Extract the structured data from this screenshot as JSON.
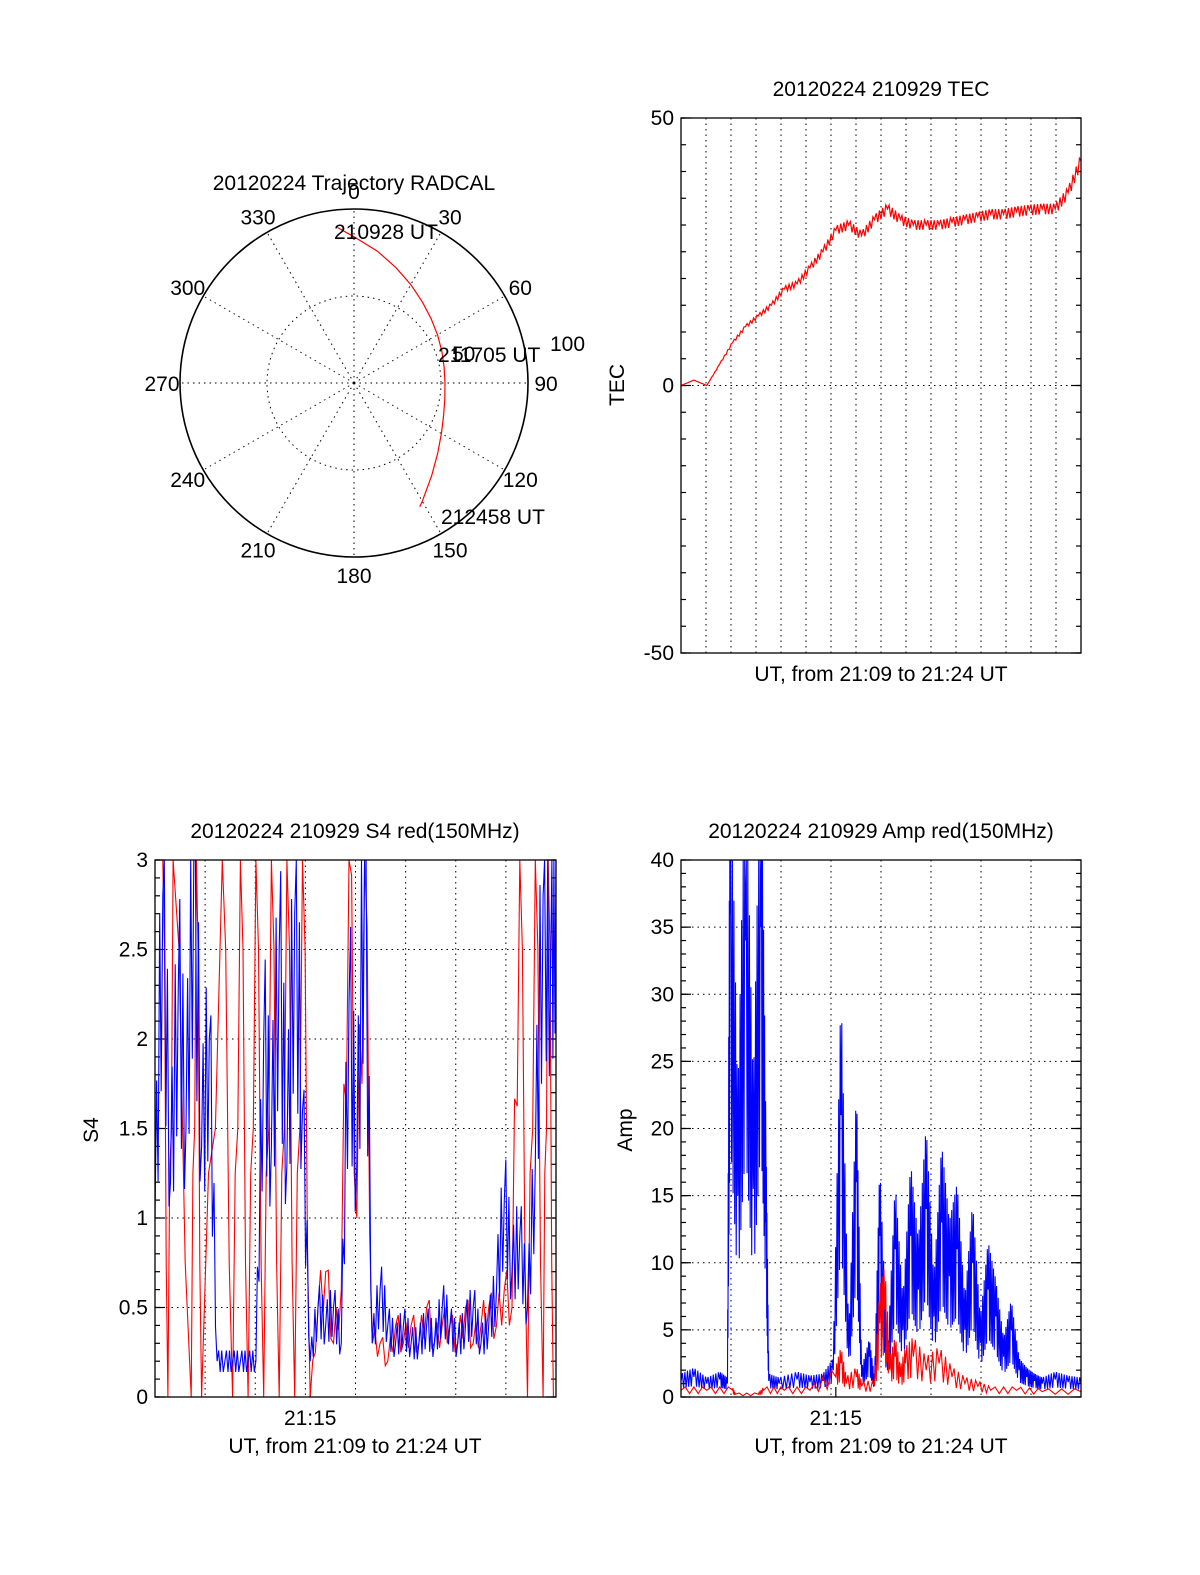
{
  "chart_data": [
    {
      "type": "polar",
      "title": "20120224 Trajectory RADCAL",
      "angle_ticks": [
        "0",
        "30",
        "60",
        "90",
        "120",
        "150",
        "180",
        "210",
        "240",
        "270",
        "300",
        "330"
      ],
      "radial_ticks": [
        "50",
        "100"
      ],
      "radial_max": 100,
      "labels": {
        "start": "210928 UT",
        "mid": "211705 UT",
        "end": "212458 UT"
      },
      "trajectory": {
        "azimuth_deg": [
          -6.0,
          0,
          10,
          20,
          30,
          40,
          50,
          60,
          70,
          80,
          90,
          100,
          110,
          120,
          130,
          140,
          150,
          152.0
        ],
        "zenith": [
          89.8,
          84.0,
          77.0,
          70.5,
          65.3,
          61.0,
          57.8,
          55.4,
          53.7,
          52.6,
          52.3,
          53.0,
          54.8,
          58.0,
          62.8,
          69.5,
          78.5,
          80.5
        ]
      },
      "trajectory_color": "#ff0000"
    },
    {
      "type": "line",
      "title": "20120224 210929 TEC",
      "ylabel": "TEC",
      "xlabel": "UT, from 21:09 to 21:24 UT",
      "ylim": [
        -50,
        50
      ],
      "yticks": [
        "-50",
        "0",
        "50"
      ],
      "x_range_min": [
        0,
        15.5
      ],
      "series": [
        {
          "color": "#ff0000",
          "x_min": [
            0,
            0.5,
            1.0,
            1.5,
            2.0,
            2.5,
            3.0,
            3.5,
            4.0,
            4.5,
            5.0,
            5.5,
            6.0,
            6.5,
            7.0,
            7.5,
            8.0,
            8.5,
            9.0,
            9.5,
            10.0,
            10.5,
            11.0,
            11.5,
            12.0,
            12.5,
            13.0,
            13.5,
            14.0,
            14.5,
            15.0,
            15.5
          ],
          "values": [
            0,
            1,
            0,
            4,
            8,
            11,
            13,
            15,
            18,
            19,
            22,
            25,
            29,
            30,
            28,
            31,
            33,
            31,
            30,
            30,
            30,
            30.5,
            31,
            31.5,
            32,
            32,
            32.5,
            32.8,
            33,
            33,
            36,
            42
          ]
        }
      ]
    },
    {
      "type": "line",
      "title": "20120224 210929 S4 red(150MHz)",
      "ylabel": "S4",
      "xlabel": "UT, from 21:09 to 21:24 UT",
      "ylim": [
        0,
        3
      ],
      "yticks": [
        "0",
        "0.5",
        "1",
        "1.5",
        "2",
        "2.5",
        "3"
      ],
      "xticks": [
        {
          "min": 6,
          "label": "21:15"
        }
      ],
      "x_range_min": [
        0,
        15.5
      ],
      "series": [
        {
          "name": "red",
          "color": "#ff0000",
          "x_min": [
            0.3,
            0.5,
            0.7,
            1.4,
            1.6,
            1.8,
            2.6,
            3.0,
            3.3,
            3.6,
            3.9,
            4.2,
            4.5,
            4.8,
            5.1,
            5.4,
            5.7,
            6.0,
            6.3,
            6.6,
            6.9,
            7.2,
            7.5,
            7.8,
            8.1,
            8.4,
            8.7,
            9.0,
            9.3,
            9.6,
            9.9,
            10.2,
            10.5,
            10.8,
            11.1,
            11.4,
            11.7,
            12.0,
            12.3,
            12.6,
            12.9,
            13.2,
            13.5,
            13.8,
            14.1,
            14.4,
            14.7,
            15.0,
            15.2,
            15.4
          ],
          "values": [
            3.0,
            0.0,
            3.0,
            0.0,
            3.0,
            0.0,
            3.0,
            0.0,
            3.0,
            0.0,
            3.0,
            0.0,
            3.0,
            0.0,
            3.0,
            0.0,
            3.0,
            0.0,
            0.5,
            0.7,
            0.3,
            0.6,
            3.0,
            1.0,
            3.0,
            0.3,
            0.3,
            0.2,
            0.4,
            0.3,
            0.4,
            0.3,
            0.5,
            0.3,
            0.4,
            0.4,
            0.3,
            0.5,
            0.3,
            0.4,
            0.5,
            0.4,
            0.6,
            0.5,
            3.0,
            0.0,
            3.0,
            0.0,
            3.0,
            0.0
          ]
        },
        {
          "name": "blue",
          "color": "#0000ff",
          "x_min": [
            0.0,
            0.3,
            0.6,
            0.9,
            1.2,
            1.5,
            1.8,
            2.1,
            2.4,
            2.7,
            3.0,
            3.3,
            3.6,
            3.9,
            4.2,
            4.5,
            4.8,
            5.1,
            5.4,
            5.7,
            6.0,
            6.3,
            6.6,
            6.9,
            7.2,
            7.5,
            7.8,
            8.1,
            8.4,
            8.7,
            9.0,
            9.3,
            9.6,
            9.9,
            10.2,
            10.5,
            10.8,
            11.1,
            11.4,
            11.7,
            12.0,
            12.3,
            12.6,
            12.9,
            13.2,
            13.5,
            13.8,
            14.1,
            14.4,
            14.7,
            15.0,
            15.3,
            15.5
          ],
          "values": [
            1.0,
            2.8,
            1.2,
            2.3,
            1.5,
            3.0,
            1.4,
            2.0,
            0.2,
            0.2,
            0.2,
            0.2,
            0.2,
            0.2,
            2.0,
            1.4,
            2.5,
            1.3,
            2.7,
            1.6,
            0.2,
            0.5,
            0.4,
            0.5,
            0.3,
            2.2,
            1.3,
            3.0,
            0.3,
            0.6,
            0.4,
            0.3,
            0.4,
            0.3,
            0.3,
            0.4,
            0.3,
            0.5,
            0.4,
            0.3,
            0.4,
            0.5,
            0.3,
            0.4,
            0.6,
            1.1,
            0.7,
            0.9,
            0.5,
            1.3,
            2.8,
            2.5,
            3.0
          ]
        }
      ]
    },
    {
      "type": "line",
      "title": "20120224 210929 Amp red(150MHz)",
      "ylabel": "Amp",
      "xlabel": "UT, from 21:09 to 21:24 UT",
      "ylim": [
        0,
        40
      ],
      "yticks": [
        "0",
        "5",
        "10",
        "15",
        "20",
        "25",
        "30",
        "35",
        "40"
      ],
      "xticks": [
        {
          "min": 6,
          "label": "21:15"
        }
      ],
      "x_range_min": [
        0,
        15.5
      ],
      "series": [
        {
          "name": "red",
          "color": "#ff0000",
          "x_min": [
            0,
            1.0,
            2.0,
            2.1,
            3.0,
            3.2,
            4.0,
            5.0,
            6.0,
            6.2,
            6.4,
            6.8,
            7.0,
            7.5,
            7.7,
            7.9,
            8.1,
            8.3,
            8.5,
            8.7,
            9.0,
            9.5,
            10.0,
            10.5,
            11.0,
            11.5,
            12.0,
            13.0,
            14.0,
            15.5
          ],
          "values": [
            0.5,
            0.5,
            0.5,
            0.2,
            0.2,
            0.5,
            0.5,
            0.5,
            1.5,
            2.5,
            1.0,
            1.5,
            0.8,
            0.8,
            5.5,
            6.5,
            2.0,
            3.0,
            1.5,
            2.5,
            3.0,
            2.0,
            2.5,
            1.5,
            1.0,
            0.8,
            0.5,
            0.5,
            0.4,
            0.4
          ]
        },
        {
          "name": "blue",
          "color": "#0000ff",
          "x_min": [
            0,
            0.5,
            1.0,
            1.5,
            1.8,
            1.9,
            2.2,
            2.5,
            2.8,
            3.1,
            3.3,
            3.4,
            3.8,
            4.5,
            5.0,
            5.5,
            5.9,
            6.2,
            6.5,
            6.8,
            7.0,
            7.3,
            7.5,
            7.7,
            8.0,
            8.3,
            8.6,
            8.9,
            9.2,
            9.5,
            9.8,
            10.1,
            10.4,
            10.7,
            11.0,
            11.3,
            11.6,
            11.9,
            12.2,
            12.5,
            12.8,
            13.1,
            13.4,
            13.7,
            14.0,
            14.5,
            15.0,
            15.5
          ],
          "values": [
            1.2,
            1.5,
            1.0,
            1.3,
            1.0,
            36.0,
            15.0,
            34.0,
            15.5,
            35.0,
            13.0,
            1.2,
            1.0,
            1.3,
            1.1,
            1.2,
            2.0,
            21.0,
            3.0,
            16.0,
            1.5,
            3.0,
            1.0,
            12.0,
            2.0,
            11.0,
            5.0,
            12.0,
            8.0,
            14.0,
            6.0,
            13.0,
            9.0,
            11.0,
            5.0,
            10.0,
            4.0,
            8.0,
            6.0,
            3.0,
            5.0,
            2.0,
            1.5,
            1.2,
            1.0,
            1.3,
            1.1,
            1.0
          ]
        }
      ]
    }
  ]
}
